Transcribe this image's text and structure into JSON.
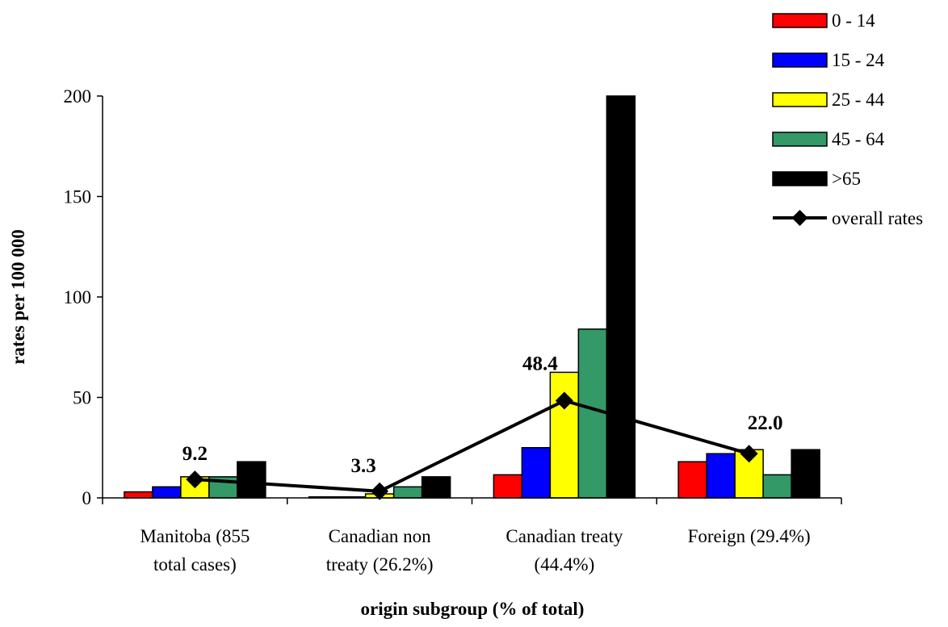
{
  "chart_data": {
    "type": "bar",
    "xlabel": "origin subgroup (% of total)",
    "ylabel": "rates per 100 000",
    "ylim": [
      0,
      200
    ],
    "yticks": [
      0,
      50,
      100,
      150,
      200
    ],
    "categories": [
      [
        "Manitoba (855",
        "total cases)"
      ],
      [
        "Canadian non",
        "treaty (26.2%)"
      ],
      [
        "Canadian treaty",
        "(44.4%)"
      ],
      [
        "Foreign (29.4%)"
      ]
    ],
    "series": [
      {
        "name": "0 - 14",
        "color": "#ff0000",
        "values": [
          3,
          0.5,
          11.5,
          18
        ]
      },
      {
        "name": "15 - 24",
        "color": "#0000ff",
        "values": [
          5.5,
          0.5,
          25,
          22
        ]
      },
      {
        "name": "25 - 44",
        "color": "#ffff00",
        "values": [
          10.5,
          2,
          62.5,
          24
        ]
      },
      {
        "name": "45 - 64",
        "color": "#339966",
        "values": [
          10.5,
          5.5,
          84,
          11.5
        ]
      },
      {
        "name": ">65",
        "color": "#000000",
        "values": [
          18,
          10.5,
          200,
          24
        ]
      }
    ],
    "line": {
      "name": "overall rates",
      "color": "#000000",
      "values": [
        9.2,
        3.3,
        48.4,
        22.0
      ],
      "labels": [
        "9.2",
        "3.3",
        "48.4",
        "22.0"
      ]
    },
    "legend_position": "top-right",
    "grid": false
  }
}
